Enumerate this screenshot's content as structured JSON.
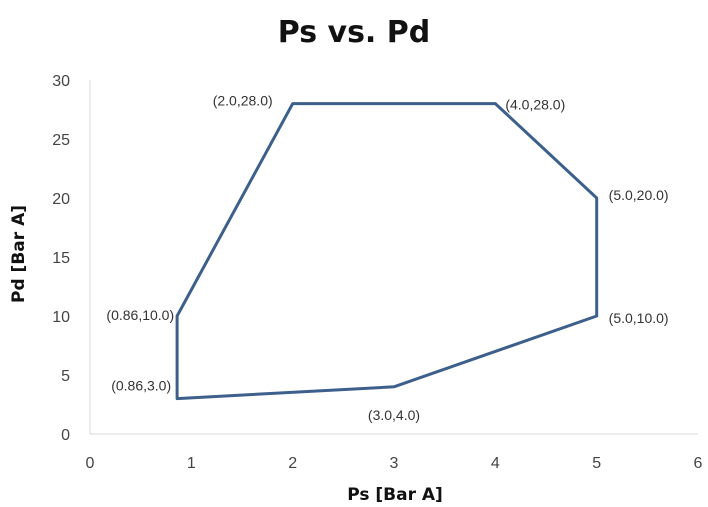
{
  "chart_data": {
    "type": "line",
    "title": "Ps vs. Pd",
    "xlabel": "Ps [Bar A]",
    "ylabel": "Pd [Bar A]",
    "xlim": [
      0,
      6
    ],
    "ylim": [
      0,
      30
    ],
    "xticks": [
      "0",
      "1",
      "2",
      "3",
      "4",
      "5",
      "6"
    ],
    "yticks": [
      "0",
      "5",
      "10",
      "15",
      "20",
      "25",
      "30"
    ],
    "grid": false,
    "legend": "none",
    "series": [
      {
        "color": "#3D5F8C",
        "closed": true,
        "points": [
          {
            "x": 0.86,
            "y": 3.0,
            "label": "(0.86,3.0)"
          },
          {
            "x": 0.86,
            "y": 10.0,
            "label": "(0.86,10.0)"
          },
          {
            "x": 2.0,
            "y": 28.0,
            "label": "(2.0,28.0)"
          },
          {
            "x": 4.0,
            "y": 28.0,
            "label": "(4.0,28.0)"
          },
          {
            "x": 5.0,
            "y": 20.0,
            "label": "(5.0,20.0)"
          },
          {
            "x": 5.0,
            "y": 10.0,
            "label": "(5.0,10.0)"
          },
          {
            "x": 3.0,
            "y": 4.0,
            "label": "(3.0,4.0)"
          }
        ]
      }
    ]
  }
}
